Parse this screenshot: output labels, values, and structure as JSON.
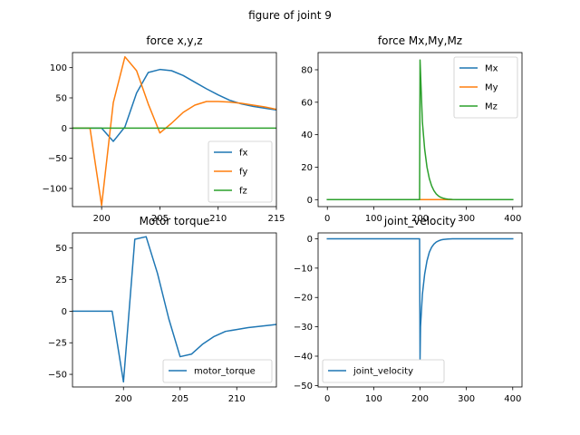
{
  "figure": {
    "title": "figure of joint 9"
  },
  "chart_data": [
    {
      "type": "line",
      "title": "force x,y,z",
      "xlim": [
        197.5,
        215
      ],
      "ylim": [
        -130,
        125
      ],
      "xticks": [
        200,
        205,
        210,
        215
      ],
      "yticks": [
        -100,
        -50,
        0,
        50,
        100
      ],
      "legend_position": "lower right",
      "series": [
        {
          "name": "fx",
          "color": "#1f77b4",
          "x": [
            197,
            198,
            199,
            200,
            201,
            202,
            203,
            204,
            205,
            206,
            207,
            208,
            209,
            210,
            211,
            212,
            213,
            214,
            215
          ],
          "y": [
            0,
            0,
            0,
            0,
            -22,
            2,
            58,
            92,
            97,
            95,
            87,
            76,
            65,
            55,
            46,
            40,
            36,
            33,
            30
          ]
        },
        {
          "name": "fy",
          "color": "#ff7f0e",
          "x": [
            197,
            198,
            199,
            200,
            201,
            202,
            203,
            204,
            205,
            206,
            207,
            208,
            209,
            210,
            211,
            212,
            213,
            214,
            215
          ],
          "y": [
            0,
            0,
            0,
            -128,
            42,
            118,
            95,
            40,
            -8,
            8,
            26,
            38,
            44,
            44,
            43,
            41,
            38,
            35,
            31
          ]
        },
        {
          "name": "fz",
          "color": "#2ca02c",
          "x": [
            197,
            215
          ],
          "y": [
            0,
            0
          ]
        }
      ]
    },
    {
      "type": "line",
      "title": "force Mx,My,Mz",
      "xlim": [
        -20,
        420
      ],
      "ylim": [
        -4.3,
        90.6
      ],
      "xticks": [
        0,
        100,
        200,
        300,
        400
      ],
      "yticks": [
        0,
        20,
        40,
        60,
        80
      ],
      "legend_position": "upper right",
      "series": [
        {
          "name": "Mx",
          "color": "#1f77b4",
          "x": [
            0,
            400
          ],
          "y": [
            0,
            0
          ]
        },
        {
          "name": "My",
          "color": "#ff7f0e",
          "x": [
            0,
            400
          ],
          "y": [
            0,
            0
          ]
        },
        {
          "name": "Mz",
          "color": "#2ca02c",
          "x": [
            0,
            199,
            200,
            205,
            210,
            215,
            220,
            225,
            230,
            235,
            240,
            245,
            250,
            255,
            260,
            270,
            280,
            300,
            400
          ],
          "y": [
            0,
            0,
            86,
            48,
            31,
            20,
            13,
            8.5,
            5.5,
            3.5,
            2.2,
            1.4,
            0.9,
            0.5,
            0.3,
            0.1,
            0,
            0,
            0
          ]
        }
      ]
    },
    {
      "type": "line",
      "title": "Motor torque",
      "xlim": [
        195.5,
        213.5
      ],
      "ylim": [
        -60,
        62
      ],
      "xticks": [
        200,
        205,
        210
      ],
      "yticks": [
        -50,
        -25,
        0,
        25,
        50
      ],
      "legend_position": "lower right",
      "series": [
        {
          "name": "motor_torque",
          "color": "#1f77b4",
          "x": [
            195,
            196,
            197,
            198,
            199,
            200,
            201,
            202,
            203,
            204,
            205,
            206,
            207,
            208,
            209,
            210,
            211,
            212,
            213,
            214
          ],
          "y": [
            0,
            0,
            0,
            0,
            0,
            -56,
            57,
            59,
            30,
            -6,
            -36,
            -34,
            -26,
            -20,
            -16,
            -14.5,
            -13,
            -12,
            -11,
            -10
          ]
        }
      ]
    },
    {
      "type": "line",
      "title": "joint_velocity",
      "xlim": [
        -20,
        420
      ],
      "ylim": [
        -50.5,
        2
      ],
      "xticks": [
        0,
        100,
        200,
        300,
        400
      ],
      "yticks": [
        -50,
        -40,
        -30,
        -20,
        -10,
        0
      ],
      "legend_position": "lower left",
      "series": [
        {
          "name": "joint_velocity",
          "color": "#1f77b4",
          "x": [
            0,
            199,
            200,
            201,
            205,
            210,
            215,
            220,
            225,
            230,
            235,
            240,
            245,
            250,
            260,
            270,
            400
          ],
          "y": [
            0,
            0,
            -41,
            -30,
            -19,
            -12,
            -7.5,
            -4.6,
            -2.9,
            -1.8,
            -1.1,
            -0.7,
            -0.4,
            -0.25,
            -0.1,
            0,
            0
          ]
        }
      ]
    }
  ]
}
